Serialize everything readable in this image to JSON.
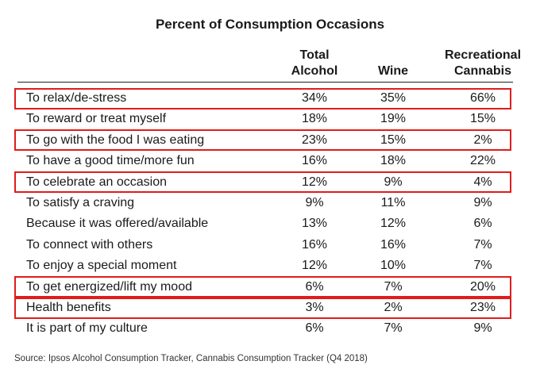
{
  "chart_data": {
    "type": "table",
    "title": "Percent of Consumption Occasions",
    "columns": [
      "Total\nAlcohol",
      "Wine",
      "Recreational\nCannabis"
    ],
    "column_headers": {
      "total": [
        "Total",
        "Alcohol"
      ],
      "wine": "Wine",
      "cannabis": [
        "Recreational",
        "Cannabis"
      ]
    },
    "rows": [
      {
        "label": "To relax/de-stress",
        "total": "34%",
        "wine": "35%",
        "cannabis": "66%",
        "highlighted": true
      },
      {
        "label": "To reward or treat myself",
        "total": "18%",
        "wine": "19%",
        "cannabis": "15%",
        "highlighted": false
      },
      {
        "label": "To go with the food I was eating",
        "total": "23%",
        "wine": "15%",
        "cannabis": "2%",
        "highlighted": true
      },
      {
        "label": "To have a good time/more fun",
        "total": "16%",
        "wine": "18%",
        "cannabis": "22%",
        "highlighted": false
      },
      {
        "label": "To celebrate an occasion",
        "total": "12%",
        "wine": "9%",
        "cannabis": "4%",
        "highlighted": true
      },
      {
        "label": "To satisfy a craving",
        "total": "9%",
        "wine": "11%",
        "cannabis": "9%",
        "highlighted": false
      },
      {
        "label": "Because it was offered/available",
        "total": "13%",
        "wine": "12%",
        "cannabis": "6%",
        "highlighted": false
      },
      {
        "label": "To connect with others",
        "total": "16%",
        "wine": "16%",
        "cannabis": "7%",
        "highlighted": false
      },
      {
        "label": "To enjoy a special moment",
        "total": "12%",
        "wine": "10%",
        "cannabis": "7%",
        "highlighted": false
      },
      {
        "label": "To get energized/lift my mood",
        "total": "6%",
        "wine": "7%",
        "cannabis": "20%",
        "highlighted": true
      },
      {
        "label": "Health benefits",
        "total": "3%",
        "wine": "2%",
        "cannabis": "23%",
        "highlighted": true
      },
      {
        "label": "It is part of my culture",
        "total": "6%",
        "wine": "7%",
        "cannabis": "9%",
        "highlighted": false
      }
    ],
    "source": "Source: Ipsos Alcohol Consumption Tracker, Cannabis Consumption Tracker (Q4 2018)"
  },
  "colors": {
    "highlight_border": "#e01c1c",
    "text": "#1a1a1a"
  }
}
